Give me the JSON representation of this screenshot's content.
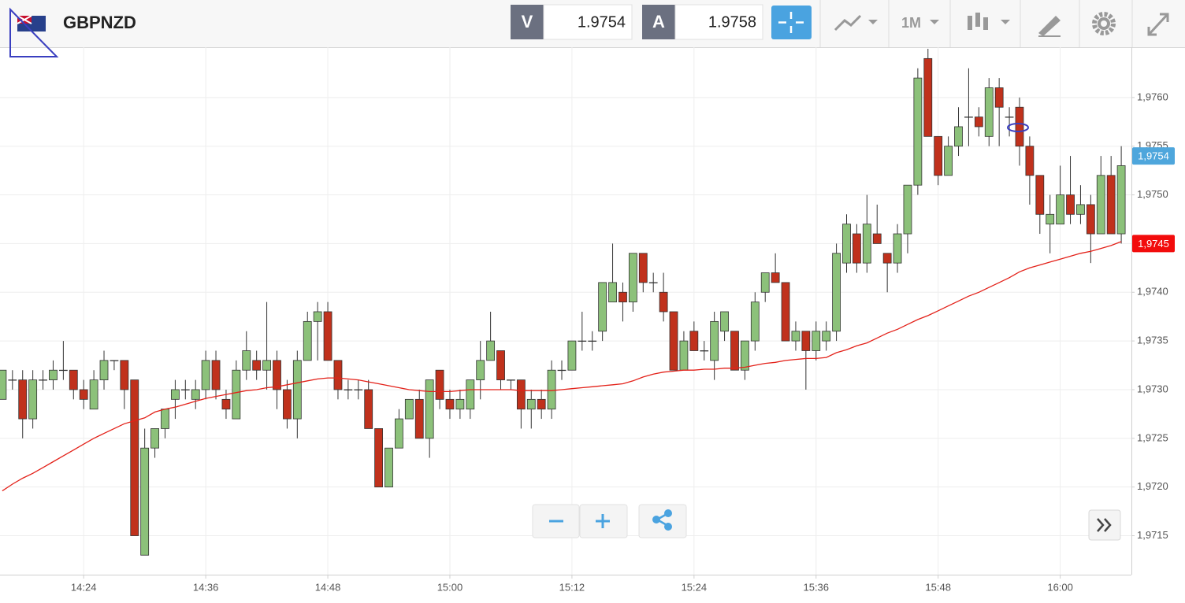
{
  "toolbar": {
    "symbol": "GBPNZD",
    "sell": {
      "label": "V",
      "price": 1.9754
    },
    "buy": {
      "label": "A",
      "price": 1.9758
    },
    "interval": "1M"
  },
  "chart_data": {
    "type": "candlestick",
    "x": [
      "14:16",
      "14:17",
      "14:18",
      "14:19",
      "14:20",
      "14:21",
      "14:22",
      "14:23",
      "14:24",
      "14:25",
      "14:26",
      "14:27",
      "14:28",
      "14:29",
      "14:30",
      "14:31",
      "14:32",
      "14:33",
      "14:34",
      "14:35",
      "14:36",
      "14:37",
      "14:38",
      "14:39",
      "14:40",
      "14:41",
      "14:42",
      "14:43",
      "14:44",
      "14:45",
      "14:46",
      "14:47",
      "14:48",
      "14:49",
      "14:50",
      "14:51",
      "14:52",
      "14:53",
      "14:54",
      "14:55",
      "14:56",
      "14:57",
      "14:58",
      "14:59",
      "15:00",
      "15:01",
      "15:02",
      "15:03",
      "15:04",
      "15:05",
      "15:06",
      "15:07",
      "15:08",
      "15:09",
      "15:10",
      "15:11",
      "15:12",
      "15:13",
      "15:14",
      "15:15",
      "15:16",
      "15:17",
      "15:18",
      "15:19",
      "15:20",
      "15:21",
      "15:22",
      "15:23",
      "15:24",
      "15:25",
      "15:26",
      "15:27",
      "15:28",
      "15:29",
      "15:30",
      "15:31",
      "15:32",
      "15:33",
      "15:34",
      "15:35",
      "15:36",
      "15:37",
      "15:38",
      "15:39",
      "15:40",
      "15:41",
      "15:42",
      "15:43",
      "15:44",
      "15:45",
      "15:46",
      "15:47",
      "15:48",
      "15:49",
      "15:50",
      "15:51",
      "15:52",
      "15:53",
      "15:54",
      "15:55",
      "15:56",
      "15:57",
      "15:58",
      "15:59",
      "16:00",
      "16:01",
      "16:02",
      "16:03",
      "16:04",
      "16:05",
      "16:06"
    ],
    "open": [
      1.9729,
      1.9731,
      1.9731,
      1.9727,
      1.9731,
      1.9731,
      1.9732,
      1.9732,
      1.973,
      1.9728,
      1.9731,
      1.9733,
      1.9733,
      1.9731,
      1.9713,
      1.9724,
      1.9726,
      1.9729,
      1.973,
      1.9729,
      1.973,
      1.9733,
      1.9729,
      1.9727,
      1.9732,
      1.9733,
      1.9732,
      1.9733,
      1.973,
      1.9727,
      1.9733,
      1.9737,
      1.9738,
      1.9733,
      1.973,
      1.973,
      1.973,
      1.9726,
      1.972,
      1.9724,
      1.9727,
      1.9729,
      1.9725,
      1.9732,
      1.9729,
      1.9728,
      1.9728,
      1.9731,
      1.9733,
      1.9734,
      1.9731,
      1.9731,
      1.9728,
      1.9729,
      1.9728,
      1.9732,
      1.9732,
      1.9735,
      1.9735,
      1.9736,
      1.9739,
      1.974,
      1.9739,
      1.9744,
      1.9741,
      1.974,
      1.9738,
      1.9732,
      1.9736,
      1.9734,
      1.9733,
      1.9736,
      1.9736,
      1.9732,
      1.9735,
      1.974,
      1.9742,
      1.9741,
      1.9735,
      1.9736,
      1.9734,
      1.9735,
      1.9736,
      1.9743,
      1.9746,
      1.9743,
      1.9746,
      1.9744,
      1.9743,
      1.9746,
      1.9751,
      1.9764,
      1.9756,
      1.9752,
      1.9755,
      1.9758,
      1.9758,
      1.9756,
      1.9761,
      1.9758,
      1.9759,
      1.9755,
      1.9752,
      1.9747,
      1.9747,
      1.975,
      1.9748,
      1.9749,
      1.9746,
      1.9752,
      1.9746
    ],
    "high": [
      1.9732,
      1.9732,
      1.9732,
      1.9732,
      1.9732,
      1.9733,
      1.9735,
      1.9732,
      1.9731,
      1.9732,
      1.9734,
      1.9733,
      1.9733,
      1.9731,
      1.9726,
      1.9726,
      1.9728,
      1.9731,
      1.9731,
      1.9731,
      1.9734,
      1.9734,
      1.973,
      1.9733,
      1.9736,
      1.9734,
      1.9739,
      1.9734,
      1.9731,
      1.9734,
      1.9738,
      1.9739,
      1.9739,
      1.9733,
      1.9731,
      1.9731,
      1.9731,
      1.9726,
      1.9724,
      1.9728,
      1.9729,
      1.973,
      1.9731,
      1.9732,
      1.973,
      1.973,
      1.9731,
      1.9735,
      1.9738,
      1.9734,
      1.9731,
      1.9731,
      1.973,
      1.973,
      1.9733,
      1.9733,
      1.9735,
      1.9738,
      1.9736,
      1.9741,
      1.9745,
      1.9741,
      1.9744,
      1.9744,
      1.9742,
      1.9742,
      1.9738,
      1.9736,
      1.9737,
      1.9735,
      1.9738,
      1.9738,
      1.9736,
      1.9735,
      1.974,
      1.9742,
      1.9744,
      1.9741,
      1.9737,
      1.9736,
      1.9737,
      1.9737,
      1.9745,
      1.9748,
      1.9747,
      1.975,
      1.9749,
      1.9744,
      1.9747,
      1.9751,
      1.9763,
      1.9765,
      1.9756,
      1.9756,
      1.9759,
      1.9763,
      1.9759,
      1.9762,
      1.9762,
      1.9759,
      1.976,
      1.9756,
      1.9752,
      1.975,
      1.9753,
      1.9754,
      1.9751,
      1.975,
      1.9754,
      1.9754,
      1.9755
    ],
    "low": [
      1.9729,
      1.973,
      1.9725,
      1.9726,
      1.973,
      1.973,
      1.9731,
      1.9729,
      1.9728,
      1.9728,
      1.973,
      1.9732,
      1.9728,
      1.9715,
      1.9713,
      1.9723,
      1.9725,
      1.9727,
      1.9729,
      1.9728,
      1.9729,
      1.9729,
      1.9727,
      1.9727,
      1.9731,
      1.9731,
      1.973,
      1.9728,
      1.9726,
      1.9725,
      1.9733,
      1.9733,
      1.9733,
      1.9729,
      1.9729,
      1.9729,
      1.9726,
      1.972,
      1.972,
      1.9724,
      1.9727,
      1.9725,
      1.9723,
      1.9728,
      1.9727,
      1.9727,
      1.9727,
      1.9729,
      1.9733,
      1.973,
      1.973,
      1.9726,
      1.9726,
      1.9727,
      1.9727,
      1.9731,
      1.9732,
      1.9734,
      1.9734,
      1.9735,
      1.9739,
      1.9737,
      1.9738,
      1.974,
      1.974,
      1.9737,
      1.9732,
      1.9732,
      1.9734,
      1.9733,
      1.9731,
      1.9735,
      1.9732,
      1.9731,
      1.9734,
      1.9739,
      1.9741,
      1.9735,
      1.9734,
      1.973,
      1.9733,
      1.9734,
      1.9735,
      1.9742,
      1.9742,
      1.9742,
      1.9745,
      1.974,
      1.9742,
      1.9744,
      1.975,
      1.9756,
      1.9751,
      1.9752,
      1.9754,
      1.9755,
      1.9756,
      1.9755,
      1.9755,
      1.9756,
      1.9753,
      1.9749,
      1.9746,
      1.9744,
      1.9747,
      1.9747,
      1.9747,
      1.9743,
      1.9746,
      1.9746,
      1.9745
    ],
    "close": [
      1.9732,
      1.9731,
      1.9727,
      1.9731,
      1.9731,
      1.9732,
      1.9732,
      1.973,
      1.9729,
      1.9731,
      1.9733,
      1.9733,
      1.973,
      1.9715,
      1.9724,
      1.9726,
      1.9728,
      1.973,
      1.973,
      1.973,
      1.9733,
      1.973,
      1.9728,
      1.9732,
      1.9734,
      1.9732,
      1.9733,
      1.973,
      1.9727,
      1.9733,
      1.9737,
      1.9738,
      1.9733,
      1.973,
      1.973,
      1.973,
      1.9726,
      1.972,
      1.9724,
      1.9727,
      1.9729,
      1.9725,
      1.9731,
      1.9729,
      1.9728,
      1.9729,
      1.9731,
      1.9733,
      1.9735,
      1.9731,
      1.9731,
      1.9728,
      1.9729,
      1.9728,
      1.9732,
      1.9732,
      1.9735,
      1.9735,
      1.9735,
      1.9741,
      1.9741,
      1.9739,
      1.9744,
      1.9741,
      1.9741,
      1.9738,
      1.9732,
      1.9735,
      1.9734,
      1.9734,
      1.9737,
      1.9738,
      1.9732,
      1.9735,
      1.9739,
      1.9742,
      1.9741,
      1.9735,
      1.9736,
      1.9734,
      1.9736,
      1.9736,
      1.9744,
      1.9747,
      1.9743,
      1.9747,
      1.9745,
      1.9743,
      1.9746,
      1.9751,
      1.9762,
      1.9756,
      1.9752,
      1.9755,
      1.9757,
      1.9758,
      1.9757,
      1.9761,
      1.9759,
      1.9758,
      1.9755,
      1.9752,
      1.9748,
      1.9748,
      1.975,
      1.9748,
      1.9749,
      1.9746,
      1.9752,
      1.9746,
      1.9753
    ],
    "up_color": "#8cc17a",
    "down_color": "#c0311c",
    "ma": {
      "color": "#e32119",
      "values": [
        1.97196,
        1.97203,
        1.97209,
        1.97214,
        1.9722,
        1.97226,
        1.97232,
        1.97238,
        1.97244,
        1.9725,
        1.97255,
        1.9726,
        1.97265,
        1.97268,
        1.97271,
        1.97277,
        1.9728,
        1.97282,
        1.97285,
        1.97288,
        1.97291,
        1.97293,
        1.97295,
        1.97297,
        1.97299,
        1.973,
        1.97302,
        1.97303,
        1.97305,
        1.97307,
        1.97309,
        1.97311,
        1.97312,
        1.97312,
        1.97311,
        1.9731,
        1.97308,
        1.97306,
        1.97304,
        1.97302,
        1.973,
        1.97299,
        1.97298,
        1.97298,
        1.97298,
        1.97299,
        1.973,
        1.973,
        1.973,
        1.973,
        1.973,
        1.97299,
        1.97299,
        1.97299,
        1.97299,
        1.973,
        1.97301,
        1.97302,
        1.97303,
        1.97304,
        1.97305,
        1.97306,
        1.97309,
        1.97313,
        1.97316,
        1.97318,
        1.97319,
        1.9732,
        1.9732,
        1.97321,
        1.97321,
        1.97322,
        1.97322,
        1.97323,
        1.97325,
        1.97327,
        1.97328,
        1.9733,
        1.97331,
        1.97332,
        1.97332,
        1.97333,
        1.97338,
        1.97341,
        1.97345,
        1.97348,
        1.97353,
        1.97358,
        1.97362,
        1.97367,
        1.97372,
        1.97376,
        1.97381,
        1.97386,
        1.97391,
        1.97396,
        1.974,
        1.97405,
        1.9741,
        1.97415,
        1.97421,
        1.97425,
        1.97428,
        1.97431,
        1.97434,
        1.97437,
        1.9744,
        1.97442,
        1.97445,
        1.97448,
        1.97452
      ]
    },
    "xlim": [
      "14:15",
      "16:07"
    ],
    "xticks": [
      "14:24",
      "14:36",
      "14:48",
      "15:00",
      "15:12",
      "15:24",
      "15:36",
      "15:48",
      "16:00"
    ],
    "ylim": [
      1.9711,
      1.9765
    ],
    "yticks": [
      {
        "value": 1.9715,
        "label": "1,9715"
      },
      {
        "value": 1.972,
        "label": "1,9720"
      },
      {
        "value": 1.9725,
        "label": "1,9725"
      },
      {
        "value": 1.973,
        "label": "1,9730"
      },
      {
        "value": 1.9735,
        "label": "1,9735"
      },
      {
        "value": 1.974,
        "label": "1,9740"
      },
      {
        "value": 1.9745,
        "label": "1,9745"
      },
      {
        "value": 1.975,
        "label": "1,9750"
      },
      {
        "value": 1.9755,
        "label": "1,9755"
      },
      {
        "value": 1.976,
        "label": "1,9760"
      }
    ],
    "grid": true,
    "price_labels": [
      {
        "value": 1.9754,
        "label": "1,9754",
        "color": "#4ea6dc"
      },
      {
        "value": 1.9745,
        "label": "1,9745",
        "color": "#f20c0c"
      }
    ]
  }
}
